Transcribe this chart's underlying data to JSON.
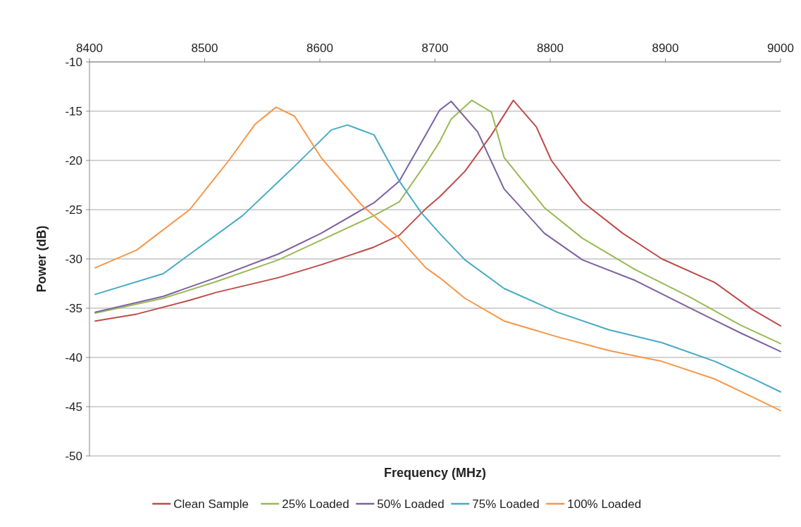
{
  "chart_data": {
    "type": "line",
    "xlabel": "Frequency (MHz)",
    "ylabel": "Power (dB)",
    "xlim": [
      8400,
      9000
    ],
    "xticks": [
      8400,
      8500,
      8600,
      8700,
      8800,
      8900,
      9000
    ],
    "ylim": [
      -50,
      -10
    ],
    "yticks": [
      -10,
      -15,
      -20,
      -25,
      -30,
      -35,
      -40,
      -45,
      -50
    ],
    "grid": "y",
    "legend": "bottom",
    "marker": "none",
    "line_style": "solid",
    "series": [
      {
        "name": "Clean Sample",
        "color": "#be4b48",
        "x": [
          8405,
          8441,
          8487,
          8510,
          8564,
          8601,
          8647,
          8669,
          8692,
          8704,
          8726,
          8749,
          8768,
          8788,
          8801,
          8828,
          8863,
          8897,
          8943,
          8975,
          9000
        ],
        "values": [
          -36.3,
          -35.6,
          -34.2,
          -33.4,
          -31.9,
          -30.6,
          -28.8,
          -27.6,
          -24.9,
          -23.7,
          -21.1,
          -17.4,
          -13.9,
          -16.6,
          -20.0,
          -24.2,
          -27.4,
          -30.0,
          -32.4,
          -35.1,
          -36.8
        ]
      },
      {
        "name": "25% Loaded",
        "color": "#98b954",
        "x": [
          8405,
          8464,
          8510,
          8564,
          8601,
          8647,
          8669,
          8692,
          8704,
          8714,
          8732,
          8749,
          8760,
          8795,
          8828,
          8874,
          8920,
          8965,
          9000
        ],
        "values": [
          -35.5,
          -34.0,
          -32.3,
          -30.1,
          -28.1,
          -25.6,
          -24.2,
          -20.3,
          -18.1,
          -15.8,
          -13.9,
          -15.1,
          -19.7,
          -24.8,
          -27.9,
          -31.1,
          -33.8,
          -36.7,
          -38.6
        ]
      },
      {
        "name": "50% Loaded",
        "color": "#7d60a0",
        "x": [
          8405,
          8464,
          8510,
          8564,
          8601,
          8647,
          8669,
          8692,
          8704,
          8714,
          8737,
          8760,
          8795,
          8828,
          8874,
          8920,
          8965,
          9000
        ],
        "values": [
          -35.4,
          -33.8,
          -31.9,
          -29.5,
          -27.4,
          -24.3,
          -22.1,
          -17.4,
          -14.9,
          -14.0,
          -17.1,
          -22.9,
          -27.4,
          -30.1,
          -32.2,
          -34.9,
          -37.5,
          -39.4
        ]
      },
      {
        "name": "75% Loaded",
        "color": "#46aac5",
        "x": [
          8405,
          8464,
          8533,
          8578,
          8610,
          8624,
          8647,
          8669,
          8688,
          8704,
          8726,
          8760,
          8806,
          8851,
          8897,
          8943,
          8977,
          9000
        ],
        "values": [
          -33.6,
          -31.5,
          -25.6,
          -20.6,
          -16.9,
          -16.4,
          -17.4,
          -22.1,
          -25.3,
          -27.4,
          -30.1,
          -33.0,
          -35.4,
          -37.2,
          -38.5,
          -40.4,
          -42.2,
          -43.5
        ]
      },
      {
        "name": "100% Loaded",
        "color": "#f79646",
        "x": [
          8405,
          8441,
          8487,
          8521,
          8544,
          8562,
          8578,
          8601,
          8636,
          8669,
          8692,
          8704,
          8726,
          8760,
          8806,
          8851,
          8897,
          8943,
          8977,
          9000
        ],
        "values": [
          -30.9,
          -29.1,
          -25.0,
          -20.0,
          -16.3,
          -14.6,
          -15.5,
          -19.7,
          -24.5,
          -27.9,
          -30.9,
          -31.9,
          -34.0,
          -36.3,
          -37.9,
          -39.3,
          -40.4,
          -42.2,
          -44.1,
          -45.4
        ]
      }
    ]
  }
}
